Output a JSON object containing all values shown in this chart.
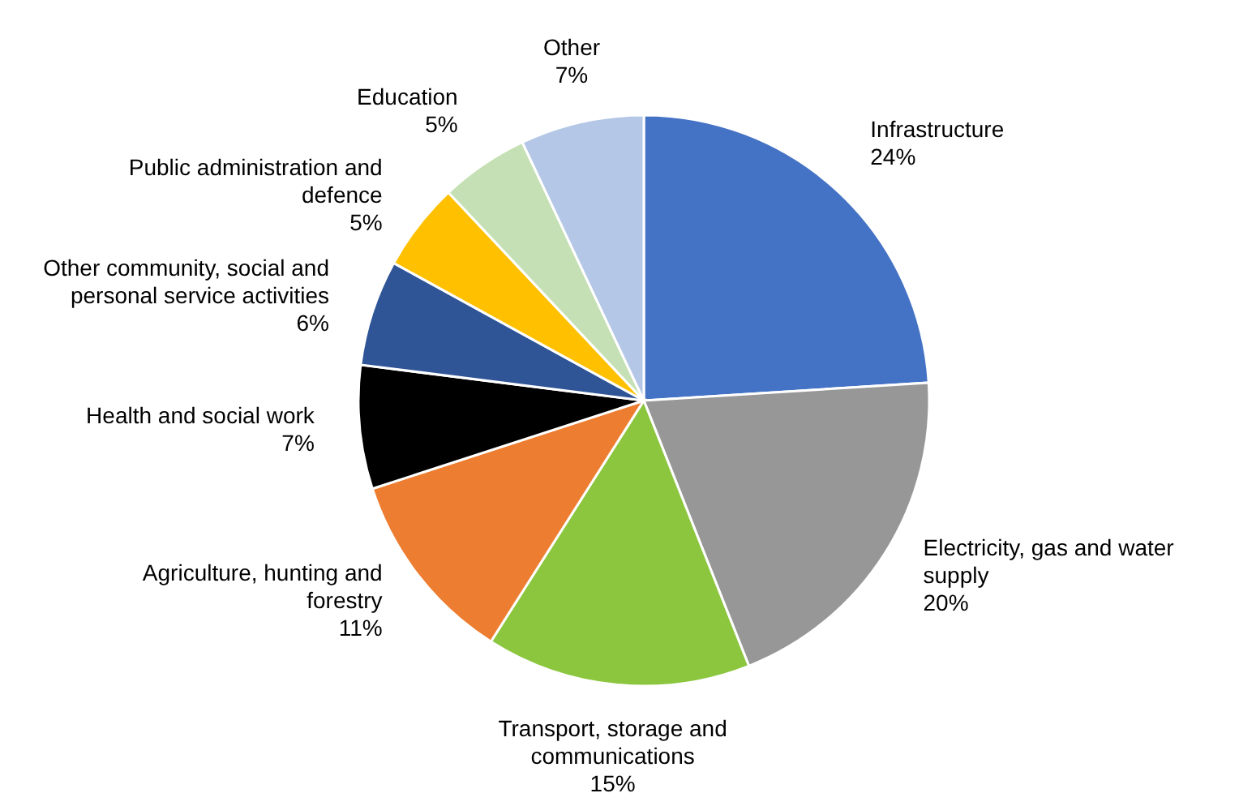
{
  "chart_data": {
    "type": "pie",
    "categories": [
      "Infrastructure",
      "Electricity, gas and water supply",
      "Transport, storage and communications",
      "Agriculture, hunting and forestry",
      "Health and social work",
      "Other community, social and personal service activities",
      "Public administration and defence",
      "Education",
      "Other"
    ],
    "values": [
      24,
      20,
      15,
      11,
      7,
      6,
      5,
      5,
      7
    ],
    "value_labels": [
      "24%",
      "20%",
      "15%",
      "11%",
      "7%",
      "6%",
      "5%",
      "5%",
      "7%"
    ],
    "colors": [
      "#4472c4",
      "#979797",
      "#8cc63f",
      "#ed7d31",
      "#000000",
      "#2f5597",
      "#ffc000",
      "#c5e0b4",
      "#b4c7e7"
    ]
  }
}
